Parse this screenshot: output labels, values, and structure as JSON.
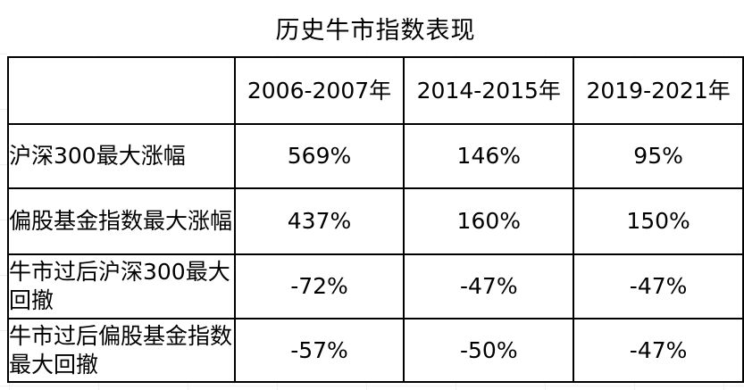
{
  "title": "历史牛市指数表现",
  "columns": [
    "",
    "2006-2007年",
    "2014-2015年",
    "2019-2021年"
  ],
  "rows": [
    {
      "label": "沪深300最大涨幅",
      "values": [
        "569%",
        "146%",
        "95%"
      ]
    },
    {
      "label": "偏股基金指数最大涨幅",
      "values": [
        "437%",
        "160%",
        "150%"
      ]
    },
    {
      "label": "牛市过后沪深300最大回撤",
      "values": [
        "-72%",
        "-47%",
        "-47%"
      ]
    },
    {
      "label": "牛市过后偏股基金指数最大回撤",
      "values": [
        "-57%",
        "-50%",
        "-47%"
      ]
    }
  ]
}
